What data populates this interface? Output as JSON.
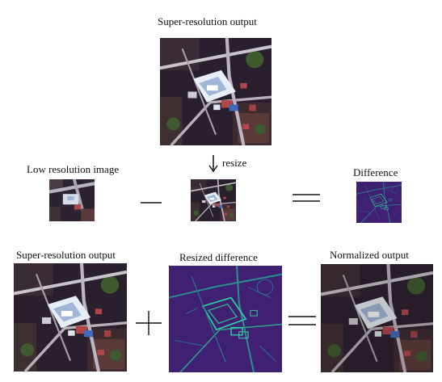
{
  "top": {
    "title": "Super-resolution output",
    "resize_label": "resize"
  },
  "middle": {
    "lr_label": "Low resolution image",
    "diff_label": "Difference"
  },
  "bottom": {
    "sr_label": "Super-resolution output",
    "resized_diff_label": "Resized difference",
    "normalized_label": "Normalized output"
  },
  "colors": {
    "satellite_dark": "#2a1f2c",
    "satellite_road": "#c9c3cc",
    "satellite_building": "#e8eef5",
    "satellite_roof_red": "#b3464a",
    "satellite_roof_blue": "#3d6bbd",
    "satellite_veg": "#3f5a2f",
    "diff_bg": "#3b1c6b",
    "diff_edge": "#2ed4a4"
  },
  "icons": {
    "minus": "minus-icon",
    "equals": "equals-icon",
    "plus": "plus-icon",
    "arrow": "arrow-down-icon"
  }
}
